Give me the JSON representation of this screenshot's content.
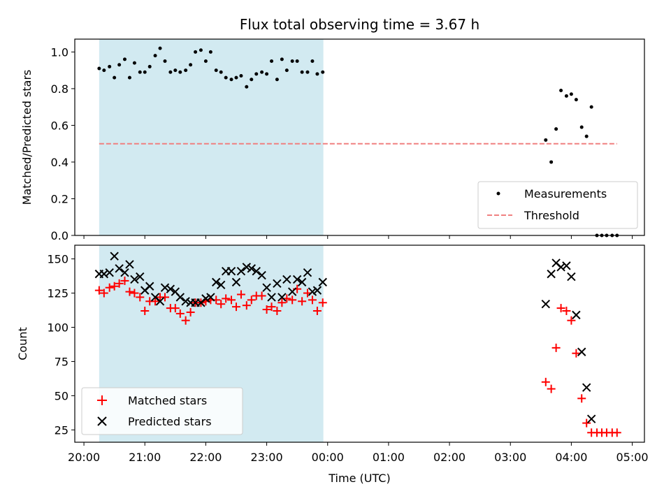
{
  "chart_data": [
    {
      "type": "scatter",
      "title": "Flux total observing time = 3.67 h",
      "xlabel": "",
      "ylabel": "Matched/Predicted stars",
      "ylim": [
        0,
        1.07
      ],
      "yticks": [
        "0.0",
        "0.2",
        "0.4",
        "0.6",
        "0.8",
        "1.0"
      ],
      "ytick_values": [
        0,
        0.2,
        0.4,
        0.6,
        0.8,
        1.0
      ],
      "shaded_region": {
        "x_start": 20.25,
        "x_end": 23.93,
        "color": "#add8e6"
      },
      "threshold": {
        "name": "Threshold",
        "y": 0.5,
        "x_start": 20.25,
        "x_end": 28.75,
        "color": "#f08080"
      },
      "legend_position": "lower-right",
      "series": [
        {
          "name": "Measurements",
          "color": "#000000",
          "marker": "dot",
          "points": [
            [
              20.25,
              0.91
            ],
            [
              20.33,
              0.9
            ],
            [
              20.42,
              0.92
            ],
            [
              20.5,
              0.86
            ],
            [
              20.58,
              0.93
            ],
            [
              20.67,
              0.96
            ],
            [
              20.75,
              0.86
            ],
            [
              20.83,
              0.94
            ],
            [
              20.92,
              0.89
            ],
            [
              21.0,
              0.89
            ],
            [
              21.08,
              0.92
            ],
            [
              21.17,
              0.98
            ],
            [
              21.25,
              1.02
            ],
            [
              21.33,
              0.95
            ],
            [
              21.42,
              0.89
            ],
            [
              21.5,
              0.9
            ],
            [
              21.58,
              0.89
            ],
            [
              21.67,
              0.9
            ],
            [
              21.75,
              0.93
            ],
            [
              21.83,
              1.0
            ],
            [
              21.92,
              1.01
            ],
            [
              22.0,
              0.95
            ],
            [
              22.08,
              1.0
            ],
            [
              22.17,
              0.9
            ],
            [
              22.25,
              0.89
            ],
            [
              22.33,
              0.86
            ],
            [
              22.42,
              0.85
            ],
            [
              22.5,
              0.86
            ],
            [
              22.58,
              0.87
            ],
            [
              22.67,
              0.81
            ],
            [
              22.75,
              0.85
            ],
            [
              22.83,
              0.88
            ],
            [
              22.92,
              0.89
            ],
            [
              23.0,
              0.88
            ],
            [
              23.08,
              0.95
            ],
            [
              23.17,
              0.85
            ],
            [
              23.25,
              0.96
            ],
            [
              23.33,
              0.9
            ],
            [
              23.42,
              0.95
            ],
            [
              23.5,
              0.95
            ],
            [
              23.58,
              0.89
            ],
            [
              23.67,
              0.89
            ],
            [
              23.75,
              0.95
            ],
            [
              23.83,
              0.88
            ],
            [
              23.92,
              0.89
            ],
            [
              27.58,
              0.52
            ],
            [
              27.67,
              0.4
            ],
            [
              27.75,
              0.58
            ],
            [
              27.83,
              0.79
            ],
            [
              27.92,
              0.76
            ],
            [
              28.0,
              0.77
            ],
            [
              28.08,
              0.74
            ],
            [
              28.17,
              0.59
            ],
            [
              28.25,
              0.54
            ],
            [
              28.33,
              0.7
            ],
            [
              28.42,
              0.0
            ],
            [
              28.5,
              0.0
            ],
            [
              28.58,
              0.0
            ],
            [
              28.67,
              0.0
            ],
            [
              28.75,
              0.0
            ]
          ]
        }
      ]
    },
    {
      "type": "scatter",
      "title": "",
      "xlabel": "Time (UTC)",
      "ylabel": "Count",
      "ylim": [
        16,
        160
      ],
      "yticks": [
        "25",
        "50",
        "75",
        "100",
        "125",
        "150"
      ],
      "ytick_values": [
        25,
        50,
        75,
        100,
        125,
        150
      ],
      "xlim": [
        19.85,
        29.2
      ],
      "xticks": [
        "20:00",
        "21:00",
        "22:00",
        "23:00",
        "00:00",
        "01:00",
        "02:00",
        "03:00",
        "04:00",
        "05:00"
      ],
      "xtick_values": [
        20,
        21,
        22,
        23,
        24,
        25,
        26,
        27,
        28,
        29
      ],
      "shaded_region": {
        "x_start": 20.25,
        "x_end": 23.93,
        "color": "#add8e6"
      },
      "legend_position": "lower-left",
      "series": [
        {
          "name": "Matched stars",
          "color": "#ff0000",
          "marker": "plus",
          "points": [
            [
              20.25,
              127
            ],
            [
              20.33,
              125
            ],
            [
              20.42,
              129
            ],
            [
              20.5,
              130
            ],
            [
              20.58,
              132
            ],
            [
              20.67,
              134
            ],
            [
              20.75,
              126
            ],
            [
              20.83,
              125
            ],
            [
              20.92,
              122
            ],
            [
              21.0,
              112
            ],
            [
              21.08,
              119
            ],
            [
              21.17,
              119
            ],
            [
              21.25,
              122
            ],
            [
              21.33,
              122
            ],
            [
              21.42,
              114
            ],
            [
              21.5,
              114
            ],
            [
              21.58,
              110
            ],
            [
              21.67,
              105
            ],
            [
              21.75,
              111
            ],
            [
              21.83,
              118
            ],
            [
              21.92,
              118
            ],
            [
              22.0,
              119
            ],
            [
              22.08,
              120
            ],
            [
              22.17,
              120
            ],
            [
              22.25,
              117
            ],
            [
              22.33,
              121
            ],
            [
              22.42,
              120
            ],
            [
              22.5,
              115
            ],
            [
              22.58,
              124
            ],
            [
              22.67,
              116
            ],
            [
              22.75,
              120
            ],
            [
              22.83,
              123
            ],
            [
              22.92,
              123
            ],
            [
              23.0,
              113
            ],
            [
              23.08,
              115
            ],
            [
              23.17,
              112
            ],
            [
              23.25,
              118
            ],
            [
              23.33,
              121
            ],
            [
              23.42,
              120
            ],
            [
              23.5,
              128
            ],
            [
              23.58,
              119
            ],
            [
              23.67,
              125
            ],
            [
              23.75,
              120
            ],
            [
              23.83,
              112
            ],
            [
              23.92,
              118
            ],
            [
              27.58,
              60
            ],
            [
              27.67,
              55
            ],
            [
              27.75,
              85
            ],
            [
              27.83,
              114
            ],
            [
              27.92,
              112
            ],
            [
              28.0,
              105
            ],
            [
              28.08,
              81
            ],
            [
              28.17,
              48
            ],
            [
              28.25,
              30
            ],
            [
              28.33,
              23
            ],
            [
              28.42,
              23
            ],
            [
              28.5,
              23
            ],
            [
              28.58,
              23
            ],
            [
              28.67,
              23
            ],
            [
              28.75,
              23
            ]
          ]
        },
        {
          "name": "Predicted stars",
          "color": "#000000",
          "marker": "x",
          "points": [
            [
              20.25,
              139
            ],
            [
              20.33,
              139
            ],
            [
              20.42,
              140
            ],
            [
              20.5,
              152
            ],
            [
              20.58,
              143
            ],
            [
              20.67,
              140
            ],
            [
              20.75,
              146
            ],
            [
              20.83,
              135
            ],
            [
              20.92,
              137
            ],
            [
              21.0,
              127
            ],
            [
              21.08,
              130
            ],
            [
              21.17,
              122
            ],
            [
              21.25,
              119
            ],
            [
              21.33,
              129
            ],
            [
              21.42,
              128
            ],
            [
              21.5,
              126
            ],
            [
              21.58,
              122
            ],
            [
              21.67,
              119
            ],
            [
              21.75,
              118
            ],
            [
              21.83,
              118
            ],
            [
              21.92,
              118
            ],
            [
              22.0,
              121
            ],
            [
              22.08,
              122
            ],
            [
              22.17,
              133
            ],
            [
              22.25,
              131
            ],
            [
              22.33,
              141
            ],
            [
              22.42,
              141
            ],
            [
              22.5,
              133
            ],
            [
              22.58,
              141
            ],
            [
              22.67,
              144
            ],
            [
              22.75,
              143
            ],
            [
              22.83,
              141
            ],
            [
              22.92,
              138
            ],
            [
              23.0,
              129
            ],
            [
              23.08,
              122
            ],
            [
              23.17,
              132
            ],
            [
              23.25,
              122
            ],
            [
              23.33,
              135
            ],
            [
              23.42,
              126
            ],
            [
              23.5,
              135
            ],
            [
              23.58,
              133
            ],
            [
              23.67,
              140
            ],
            [
              23.75,
              126
            ],
            [
              23.83,
              127
            ],
            [
              23.92,
              133
            ],
            [
              27.58,
              117
            ],
            [
              27.67,
              139
            ],
            [
              27.75,
              147
            ],
            [
              27.83,
              144
            ],
            [
              27.92,
              145
            ],
            [
              28.0,
              137
            ],
            [
              28.08,
              109
            ],
            [
              28.17,
              82
            ],
            [
              28.25,
              56
            ],
            [
              28.33,
              33
            ]
          ]
        }
      ]
    }
  ]
}
